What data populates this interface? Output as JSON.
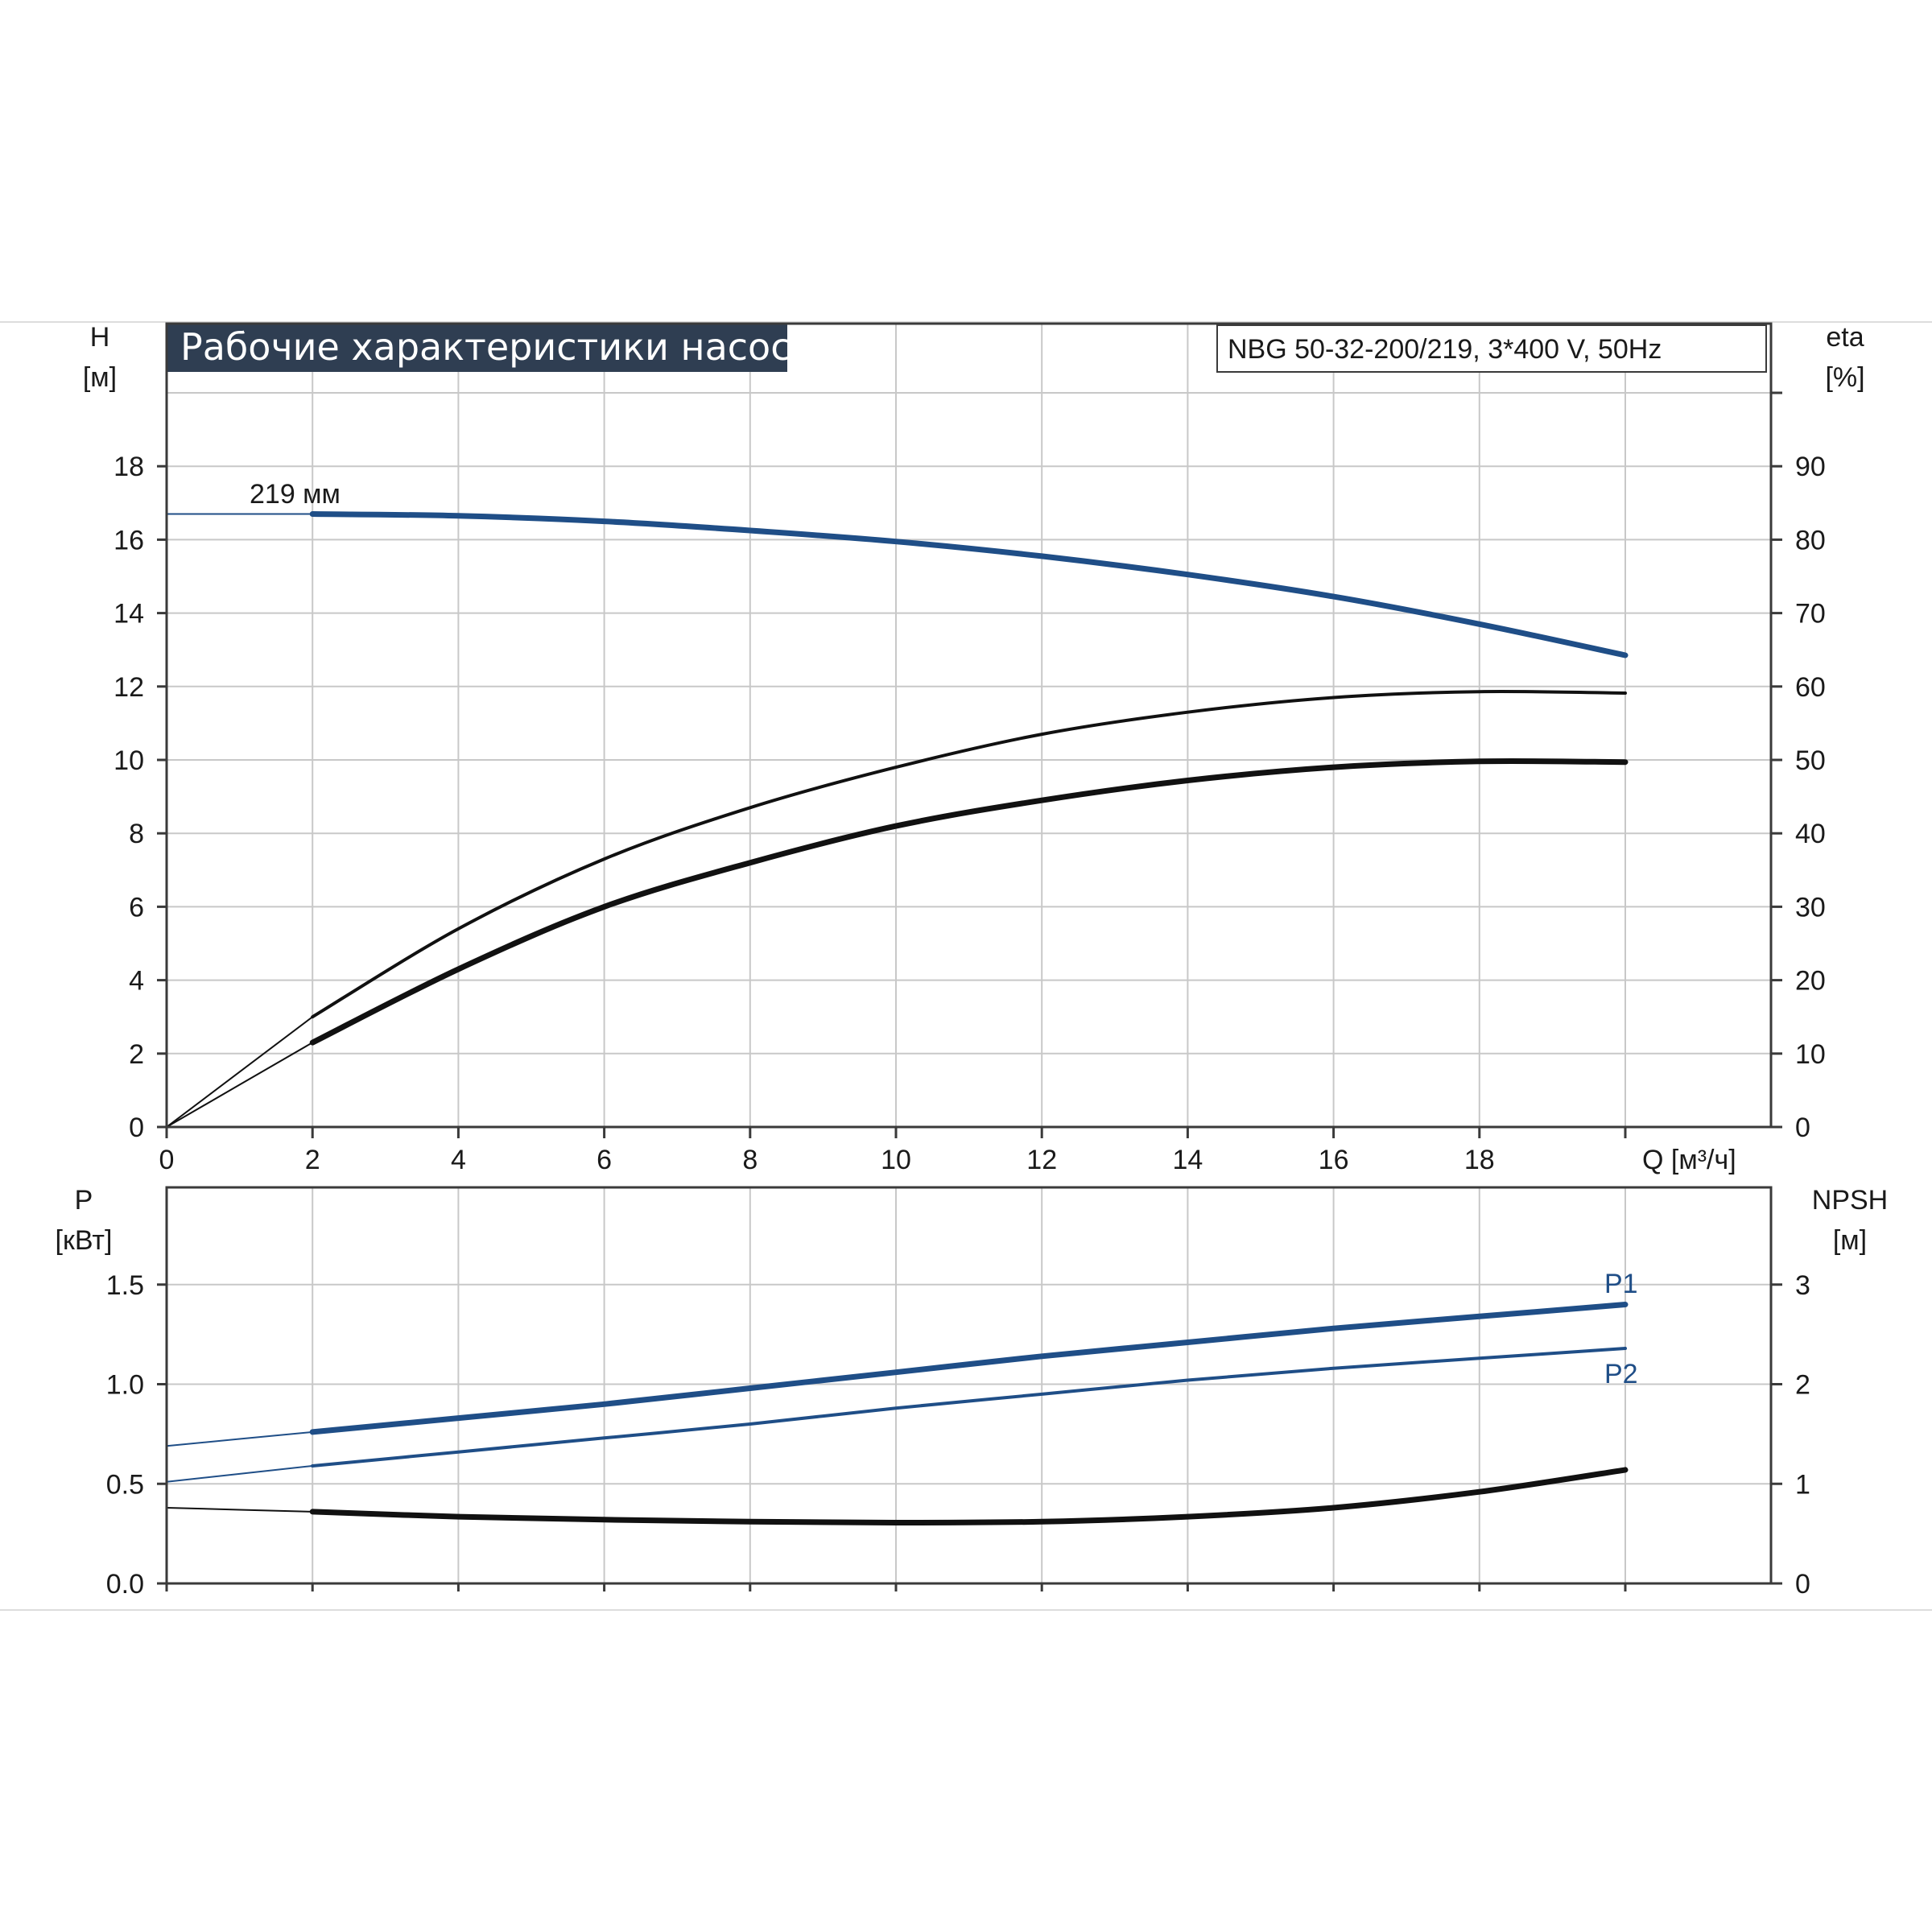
{
  "title": "Рабочие характеристики насоса",
  "model": "NBG 50-32-200/219, 3*400 V, 50Hz",
  "colors": {
    "blue": "#1f4e87",
    "black": "#111111",
    "title_bg": "#2f3e52",
    "grid": "#c8c8c8"
  },
  "chart_data": [
    {
      "type": "line",
      "xlabel": "Q [м³/ч]",
      "xlim": [
        0,
        20
      ],
      "xticks": [
        "0",
        "2",
        "4",
        "6",
        "8",
        "10",
        "12",
        "14",
        "16",
        "18"
      ],
      "ylabel_left": [
        "H",
        "[м]"
      ],
      "ylim_left": [
        0,
        20
      ],
      "yticks_left": [
        "0",
        "2",
        "4",
        "6",
        "8",
        "10",
        "12",
        "14",
        "16",
        "18"
      ],
      "ylabel_right": [
        "eta",
        "[%]"
      ],
      "ylim_right": [
        0,
        100
      ],
      "yticks_right": [
        "0",
        "10",
        "20",
        "30",
        "40",
        "50",
        "60",
        "70",
        "80",
        "90"
      ],
      "annotation": "219 мм",
      "grid": true,
      "series": [
        {
          "axis": "left",
          "color": "blue",
          "x": [
            0,
            2,
            4,
            6,
            8,
            10,
            12,
            14,
            16,
            18,
            20
          ],
          "y": [
            16.7,
            16.7,
            16.65,
            16.5,
            16.25,
            15.95,
            15.55,
            15.05,
            14.45,
            13.7,
            12.85
          ]
        },
        {
          "axis": "right",
          "color": "black",
          "x": [
            0,
            2,
            4,
            6,
            8,
            10,
            12,
            14,
            16,
            18,
            20
          ],
          "y": [
            0,
            15,
            27,
            36.5,
            43.5,
            49,
            53.5,
            56.5,
            58.5,
            59.3,
            59.1
          ]
        },
        {
          "axis": "right",
          "color": "black",
          "x": [
            0,
            2,
            4,
            6,
            8,
            10,
            12,
            14,
            16,
            18,
            20
          ],
          "y": [
            0,
            11.5,
            21.5,
            30,
            36,
            41,
            44.5,
            47.2,
            49,
            49.8,
            49.7
          ]
        }
      ]
    },
    {
      "type": "line",
      "xlim": [
        0,
        20
      ],
      "ylabel_left": [
        "P",
        "[кВт]"
      ],
      "ylim_left": [
        0,
        2
      ],
      "yticks_left": [
        "0.0",
        "0.5",
        "1.0",
        "1.5"
      ],
      "ylabel_right": [
        "NPSH",
        "[м]"
      ],
      "ylim_right": [
        0,
        4
      ],
      "yticks_right": [
        "0",
        "1",
        "2",
        "3"
      ],
      "grid": true,
      "series": [
        {
          "name": "P1",
          "axis": "left",
          "color": "blue",
          "x": [
            0,
            2,
            4,
            6,
            8,
            10,
            12,
            14,
            16,
            18,
            20
          ],
          "y": [
            0.69,
            0.76,
            0.83,
            0.9,
            0.98,
            1.06,
            1.14,
            1.21,
            1.28,
            1.34,
            1.4
          ]
        },
        {
          "name": "P2",
          "axis": "left",
          "color": "blue",
          "x": [
            0,
            2,
            4,
            6,
            8,
            10,
            12,
            14,
            16,
            18,
            20
          ],
          "y": [
            0.51,
            0.59,
            0.66,
            0.73,
            0.8,
            0.88,
            0.95,
            1.02,
            1.08,
            1.13,
            1.18
          ]
        },
        {
          "axis": "right",
          "color": "black",
          "x": [
            0,
            2,
            4,
            6,
            8,
            10,
            12,
            14,
            16,
            18,
            20
          ],
          "y": [
            0.76,
            0.72,
            0.67,
            0.64,
            0.62,
            0.61,
            0.62,
            0.67,
            0.76,
            0.92,
            1.14
          ]
        }
      ]
    }
  ]
}
